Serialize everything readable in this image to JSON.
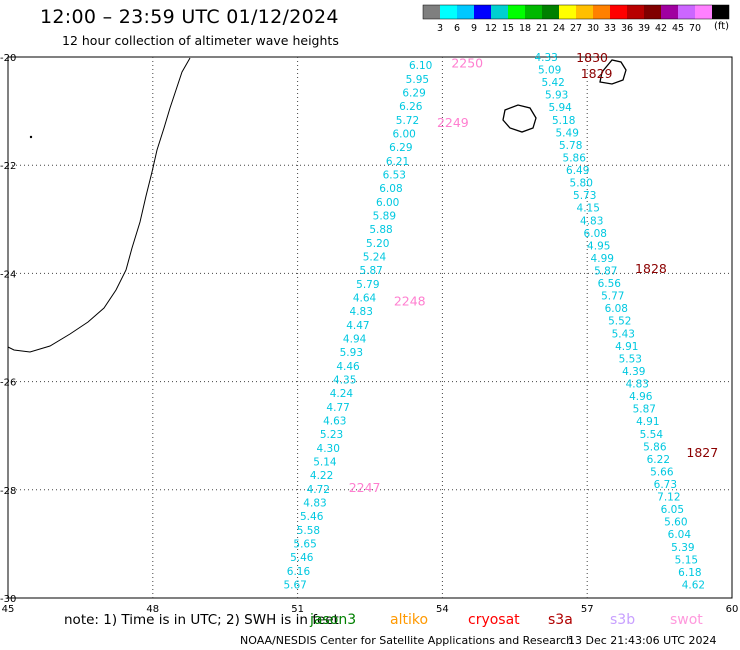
{
  "header": {
    "title": "12:00 – 23:59 UTC 01/12/2024",
    "subtitle": "12 hour collection of altimeter wave heights"
  },
  "color_scale": {
    "colors": [
      "#7f7f7f",
      "#00ffff",
      "#00c8ff",
      "#0000ff",
      "#00d0d0",
      "#00ff00",
      "#00b800",
      "#008000",
      "#ffff00",
      "#ffbf00",
      "#ff8000",
      "#ff0000",
      "#b80000",
      "#800000",
      "#a000a0",
      "#cc66ff",
      "#ff80ff",
      "#000000"
    ],
    "labels": [
      "3",
      "6",
      "9",
      "12",
      "15",
      "18",
      "21",
      "24",
      "27",
      "30",
      "33",
      "36",
      "39",
      "42",
      "45",
      "70"
    ],
    "unit": "(ft)"
  },
  "axes": {
    "x_ticks": [
      "45",
      "48",
      "51",
      "54",
      "57",
      "60"
    ],
    "y_ticks": [
      "-20",
      "-22",
      "-24",
      "-26",
      "-28",
      "-30"
    ]
  },
  "tracks": [
    {
      "color": "#00c8e0",
      "label_color": "#ff7fd0",
      "pass_labels": [
        {
          "text": "2250",
          "lat": -20.1
        },
        {
          "text": "2249",
          "lat": -21.2
        },
        {
          "text": "2248",
          "lat": -24.5
        },
        {
          "text": "2247",
          "lat": -27.95
        }
      ],
      "values": [
        "6.10",
        "5.95",
        "6.29",
        "6.26",
        "5.72",
        "6.00",
        "6.29",
        "6.21",
        "6.53",
        "6.08",
        "6.00",
        "5.89",
        "5.88",
        "5.20",
        "5.24",
        "5.87",
        "5.79",
        "4.64",
        "4.83",
        "4.47",
        "4.94",
        "5.93",
        "4.46",
        "4.35",
        "4.24",
        "4.77",
        "4.63",
        "5.23",
        "4.30",
        "5.14",
        "4.22",
        "4.72",
        "4.83",
        "5.46",
        "5.58",
        "5.65",
        "5.46",
        "6.16",
        "5.67"
      ]
    },
    {
      "color": "#00c8e0",
      "label_color": "#8b0000",
      "pass_labels": [
        {
          "text": "1830",
          "lat": -20.0
        },
        {
          "text": "1829",
          "lat": -20.3
        },
        {
          "text": "1828",
          "lat": -23.9
        },
        {
          "text": "1827",
          "lat": -27.3
        }
      ],
      "values": [
        "4.33",
        "5.09",
        "5.42",
        "5.93",
        "5.94",
        "5.18",
        "5.49",
        "5.78",
        "5.86",
        "6.49",
        "5.80",
        "5.73",
        "4.15",
        "4.83",
        "6.08",
        "4.95",
        "4.99",
        "5.87",
        "6.56",
        "5.77",
        "6.08",
        "5.52",
        "5.43",
        "4.91",
        "5.53",
        "4.39",
        "4.83",
        "4.96",
        "5.87",
        "4.91",
        "5.54",
        "5.86",
        "6.22",
        "5.66",
        "6.73",
        "7.12",
        "6.05",
        "5.60",
        "6.04",
        "5.39",
        "5.15",
        "6.18",
        "4.62"
      ]
    }
  ],
  "footer": {
    "note": "note:  1) Time is in UTC; 2) SWH is in feet",
    "satellites": [
      {
        "name": "jason3",
        "color": "#008000"
      },
      {
        "name": "altiko",
        "color": "#ff9900"
      },
      {
        "name": "cryosat",
        "color": "#ff0000"
      },
      {
        "name": "s3a",
        "color": "#b00000"
      },
      {
        "name": "s3b",
        "color": "#c8a0ff"
      },
      {
        "name": "swot",
        "color": "#ff99dd"
      }
    ],
    "credit": "NOAA/NESDIS Center for Satellite Applications and Research",
    "timestamp": "13 Dec 21:43:06 UTC 2024"
  }
}
